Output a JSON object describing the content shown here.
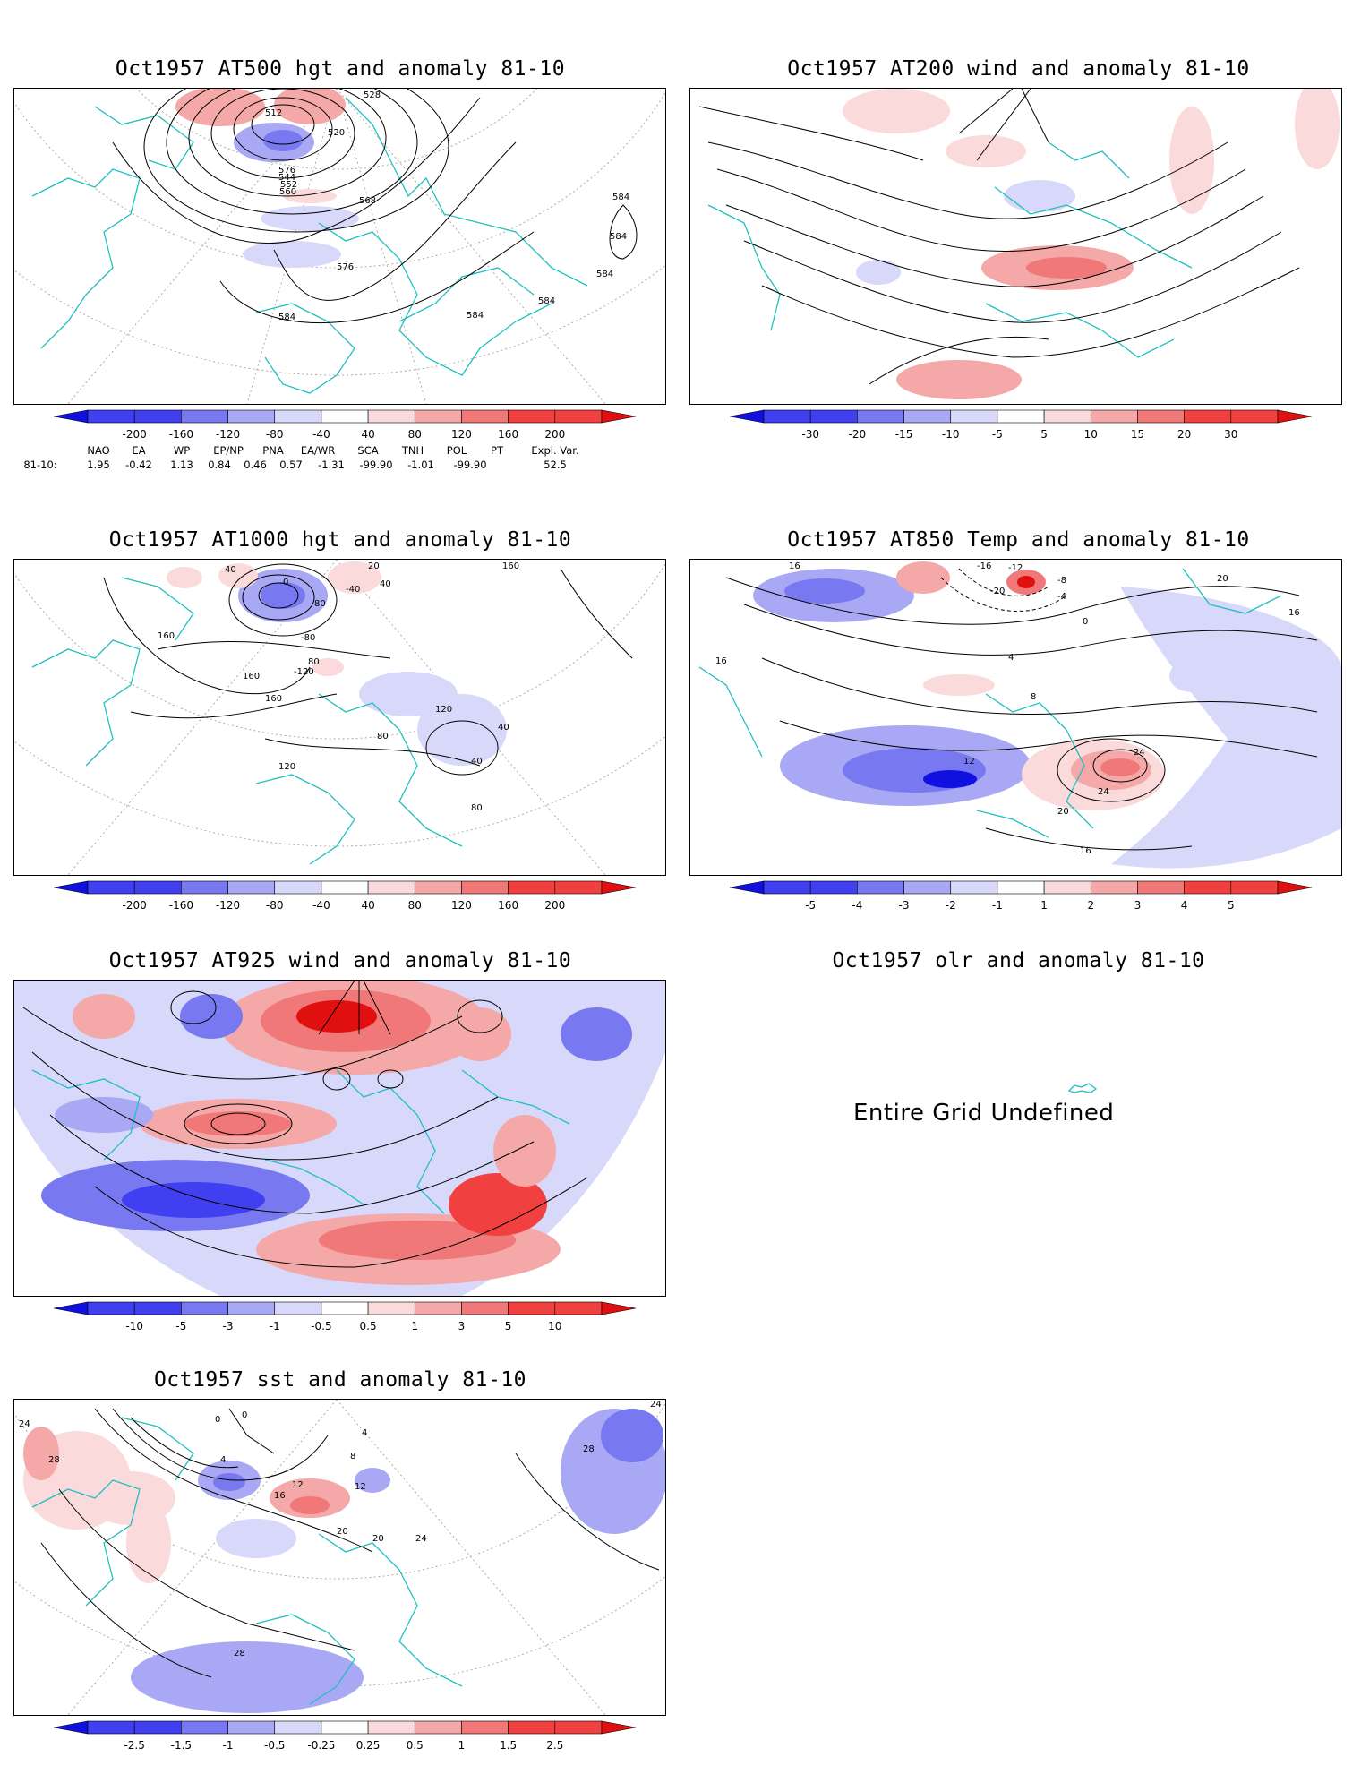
{
  "panels": {
    "p1": {
      "title": "Oct1957 AT500 hgt and anomaly 81-10",
      "colorbar": [
        "-200",
        "-160",
        "-120",
        "-80",
        "-40",
        "40",
        "80",
        "120",
        "160",
        "200"
      ],
      "contour_labels": [
        "512",
        "520",
        "528",
        "576",
        "544",
        "552",
        "560",
        "568",
        "576",
        "584",
        "584",
        "584",
        "584",
        "584",
        "584"
      ]
    },
    "p2": {
      "title": "Oct1957 AT200 wind and anomaly 81-10",
      "colorbar": [
        "-30",
        "-20",
        "-15",
        "-10",
        "-5",
        "5",
        "10",
        "15",
        "20",
        "30"
      ]
    },
    "p3": {
      "title": "Oct1957 AT1000 hgt and anomaly 81-10",
      "colorbar": [
        "-200",
        "-160",
        "-120",
        "-80",
        "-40",
        "40",
        "80",
        "120",
        "160",
        "200"
      ],
      "contour_labels": [
        "40",
        "20",
        "160",
        "-40",
        "0",
        "40",
        "80",
        "-80",
        "80",
        "-120",
        "160",
        "160",
        "120",
        "160",
        "80",
        "40",
        "40",
        "120",
        "80"
      ]
    },
    "p4": {
      "title": "Oct1957 AT850 Temp and anomaly 81-10",
      "colorbar": [
        "-5",
        "-4",
        "-3",
        "-2",
        "-1",
        "1",
        "2",
        "3",
        "4",
        "5"
      ],
      "contour_labels": [
        "16",
        "-16",
        "-12",
        "-20",
        "-8",
        "-4",
        "0",
        "20",
        "16",
        "16",
        "4",
        "8",
        "12",
        "24",
        "24",
        "20",
        "16"
      ]
    },
    "p5": {
      "title": "Oct1957 AT925 wind and anomaly 81-10",
      "colorbar": [
        "-10",
        "-5",
        "-3",
        "-1",
        "-0.5",
        "0.5",
        "1",
        "3",
        "5",
        "10"
      ]
    },
    "p6": {
      "title": "Oct1957 olr and anomaly 81-10",
      "message": "Entire Grid Undefined"
    },
    "p7": {
      "title": "Oct1957 sst and anomaly 81-10",
      "colorbar": [
        "-2.5",
        "-1.5",
        "-1",
        "-0.5",
        "-0.25",
        "0.25",
        "0.5",
        "1",
        "1.5",
        "2.5"
      ],
      "contour_labels": [
        "24",
        "28",
        "0",
        "0",
        "4",
        "4",
        "8",
        "12",
        "16",
        "20",
        "20",
        "24",
        "28",
        "28",
        "24",
        "12"
      ]
    }
  },
  "indices": {
    "headers": [
      "NAO",
      "EA",
      "WP",
      "EP/NP",
      "PNA",
      "EA/WR",
      "SCA",
      "TNH",
      "POL",
      "PT",
      "Expl. Var."
    ],
    "row_label": "81-10:",
    "values": [
      "1.95",
      "-0.42",
      "1.13",
      "0.84",
      "0.46",
      "0.57",
      "-1.31",
      "-99.90",
      "-1.01",
      "-99.90",
      "52.5"
    ]
  },
  "colors": {
    "coastline": "#20c0c0",
    "anomaly_scale": [
      "#1010e0",
      "#4040f0",
      "#7878f0",
      "#a8a8f4",
      "#d8d8fa",
      "#ffffff",
      "#fadada",
      "#f4a8a8",
      "#f07878",
      "#f04040",
      "#e01010"
    ]
  }
}
